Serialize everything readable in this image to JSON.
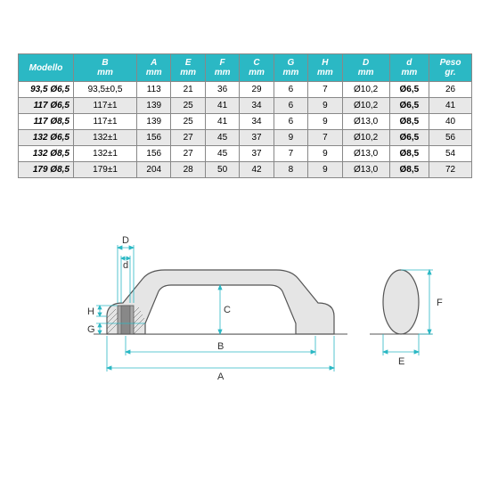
{
  "table": {
    "header_bg": "#2bb8c4",
    "header_fg": "#ffffff",
    "border_color": "#888888",
    "row_shade": "#e8e8e8",
    "columns": [
      {
        "label": "Modello",
        "sub": ""
      },
      {
        "label": "B",
        "sub": "mm"
      },
      {
        "label": "A",
        "sub": "mm"
      },
      {
        "label": "E",
        "sub": "mm"
      },
      {
        "label": "F",
        "sub": "mm"
      },
      {
        "label": "C",
        "sub": "mm"
      },
      {
        "label": "G",
        "sub": "mm"
      },
      {
        "label": "H",
        "sub": "mm"
      },
      {
        "label": "D",
        "sub": "mm"
      },
      {
        "label": "d",
        "sub": "mm"
      },
      {
        "label": "Peso",
        "sub": "gr."
      }
    ],
    "rows": [
      {
        "model": "93,5 Ø6,5",
        "B": "93,5±0,5",
        "A": "113",
        "E": "21",
        "F": "36",
        "C": "29",
        "G": "6",
        "H": "7",
        "D": "Ø10,2",
        "d": "Ø6,5",
        "peso": "26",
        "shaded": false
      },
      {
        "model": "117   Ø6,5",
        "B": "117±1",
        "A": "139",
        "E": "25",
        "F": "41",
        "C": "34",
        "G": "6",
        "H": "9",
        "D": "Ø10,2",
        "d": "Ø6,5",
        "peso": "41",
        "shaded": true
      },
      {
        "model": "117   Ø8,5",
        "B": "117±1",
        "A": "139",
        "E": "25",
        "F": "41",
        "C": "34",
        "G": "6",
        "H": "9",
        "D": "Ø13,0",
        "d": "Ø8,5",
        "peso": "40",
        "shaded": false
      },
      {
        "model": "132  Ø6,5",
        "B": "132±1",
        "A": "156",
        "E": "27",
        "F": "45",
        "C": "37",
        "G": "9",
        "H": "7",
        "D": "Ø10,2",
        "d": "Ø6,5",
        "peso": "56",
        "shaded": true
      },
      {
        "model": "132  Ø8,5",
        "B": "132±1",
        "A": "156",
        "E": "27",
        "F": "45",
        "C": "37",
        "G": "7",
        "H": "9",
        "D": "Ø13,0",
        "d": "Ø8,5",
        "peso": "54",
        "shaded": false
      },
      {
        "model": "179  Ø8,5",
        "B": "179±1",
        "A": "204",
        "E": "28",
        "F": "50",
        "C": "42",
        "G": "8",
        "H": "9",
        "D": "Ø13,0",
        "d": "Ø8,5",
        "peso": "72",
        "shaded": true
      }
    ]
  },
  "diagram": {
    "labels": {
      "A": "A",
      "B": "B",
      "C": "C",
      "D": "D",
      "d": "d",
      "E": "E",
      "F": "F",
      "G": "G",
      "H": "H"
    },
    "stroke": "#555555",
    "fill_light": "#e5e5e5",
    "fill_dark": "#999999",
    "dim_color": "#2bb8c4"
  }
}
